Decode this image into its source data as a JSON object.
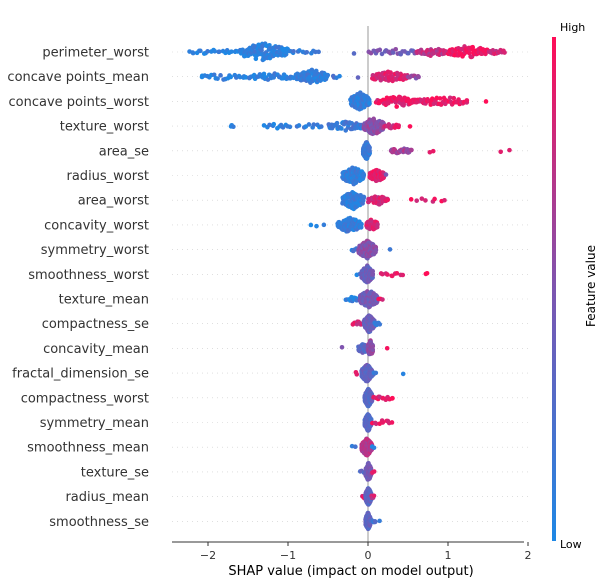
{
  "chart_data": {
    "type": "scatter",
    "subtype": "shap-beeswarm",
    "title": "",
    "xlabel": "SHAP value (impact on model output)",
    "xlim": [
      -2.45,
      1.95
    ],
    "xticks": [
      {
        "value": -2,
        "label": "−2"
      },
      {
        "value": -1,
        "label": "−1"
      },
      {
        "value": 0,
        "label": "0"
      },
      {
        "value": 1,
        "label": "1"
      },
      {
        "value": 2,
        "label": "2"
      }
    ],
    "colorbar": {
      "label": "Feature value",
      "high": "High",
      "low": "Low",
      "low_color": "#1e88e5",
      "high_color": "#ff0d57"
    },
    "features": [
      {
        "name": "perimeter_worst",
        "clusters": [
          {
            "lo": -2.25,
            "hi": -1.6,
            "n": 22,
            "c": 0.05
          },
          {
            "lo": -1.6,
            "hi": -1.0,
            "n": 110,
            "c": 0.07
          },
          {
            "lo": -1.0,
            "hi": -0.6,
            "n": 12,
            "c": 0.1
          },
          {
            "lo": -0.2,
            "hi": -0.15,
            "n": 1,
            "c": 0.3
          },
          {
            "lo": 0.0,
            "hi": 0.6,
            "n": 25,
            "c": 0.45
          },
          {
            "lo": 0.6,
            "hi": 1.0,
            "n": 35,
            "c": 0.75
          },
          {
            "lo": 1.0,
            "hi": 1.5,
            "n": 70,
            "c": 0.95
          },
          {
            "lo": 1.5,
            "hi": 1.72,
            "n": 15,
            "c": 0.8
          }
        ]
      },
      {
        "name": "concave points_mean",
        "clusters": [
          {
            "lo": -2.1,
            "hi": -1.5,
            "n": 22,
            "c": 0.05
          },
          {
            "lo": -1.5,
            "hi": -0.9,
            "n": 35,
            "c": 0.08
          },
          {
            "lo": -0.9,
            "hi": -0.5,
            "n": 80,
            "c": 0.1
          },
          {
            "lo": -0.45,
            "hi": -0.35,
            "n": 4,
            "c": 0.15
          },
          {
            "lo": -0.15,
            "hi": -0.1,
            "n": 1,
            "c": 0.25
          },
          {
            "lo": 0.05,
            "hi": 0.5,
            "n": 60,
            "c": 0.85
          },
          {
            "lo": 0.5,
            "hi": 0.65,
            "n": 8,
            "c": 0.6
          }
        ]
      },
      {
        "name": "concave points_worst",
        "clusters": [
          {
            "lo": -0.22,
            "hi": 0.02,
            "n": 110,
            "c": 0.1
          },
          {
            "lo": 0.1,
            "hi": 0.6,
            "n": 55,
            "c": 0.9
          },
          {
            "lo": 0.6,
            "hi": 1.25,
            "n": 45,
            "c": 0.92
          },
          {
            "lo": 1.45,
            "hi": 1.5,
            "n": 1,
            "c": 0.9
          }
        ]
      },
      {
        "name": "texture_worst",
        "clusters": [
          {
            "lo": -1.72,
            "hi": -1.68,
            "n": 3,
            "c": 0.1
          },
          {
            "lo": -1.3,
            "hi": -0.95,
            "n": 12,
            "c": 0.05
          },
          {
            "lo": -0.9,
            "hi": -0.55,
            "n": 10,
            "c": 0.08
          },
          {
            "lo": -0.5,
            "hi": -0.05,
            "n": 45,
            "c": 0.15
          },
          {
            "lo": -0.05,
            "hi": 0.2,
            "n": 110,
            "c": 0.55
          },
          {
            "lo": 0.2,
            "hi": 0.4,
            "n": 12,
            "c": 0.85
          },
          {
            "lo": 0.5,
            "hi": 0.55,
            "n": 1,
            "c": 0.9
          }
        ]
      },
      {
        "name": "area_se",
        "clusters": [
          {
            "lo": -0.06,
            "hi": 0.02,
            "n": 200,
            "c": 0.15
          },
          {
            "lo": 0.28,
            "hi": 0.55,
            "n": 25,
            "c": 0.65
          },
          {
            "lo": 0.7,
            "hi": 0.85,
            "n": 2,
            "c": 0.85
          },
          {
            "lo": 1.55,
            "hi": 1.82,
            "n": 2,
            "c": 0.95
          }
        ]
      },
      {
        "name": "radius_worst",
        "clusters": [
          {
            "lo": -0.32,
            "hi": -0.05,
            "n": 110,
            "c": 0.1
          },
          {
            "lo": 0.02,
            "hi": 0.2,
            "n": 70,
            "c": 0.92
          },
          {
            "lo": 0.2,
            "hi": 0.25,
            "n": 1,
            "c": 0.5
          }
        ]
      },
      {
        "name": "area_worst",
        "clusters": [
          {
            "lo": -0.32,
            "hi": -0.05,
            "n": 110,
            "c": 0.1
          },
          {
            "lo": 0.0,
            "hi": 0.25,
            "n": 50,
            "c": 0.85
          },
          {
            "lo": 0.5,
            "hi": 1.0,
            "n": 8,
            "c": 0.9
          }
        ]
      },
      {
        "name": "concavity_worst",
        "clusters": [
          {
            "lo": -0.72,
            "hi": -0.55,
            "n": 3,
            "c": 0.08
          },
          {
            "lo": -0.38,
            "hi": -0.08,
            "n": 90,
            "c": 0.1
          },
          {
            "lo": -0.02,
            "hi": 0.12,
            "n": 60,
            "c": 0.85
          }
        ]
      },
      {
        "name": "symmetry_worst",
        "clusters": [
          {
            "lo": -0.22,
            "hi": -0.12,
            "n": 5,
            "c": 0.15
          },
          {
            "lo": -0.12,
            "hi": 0.1,
            "n": 150,
            "c": 0.55
          },
          {
            "lo": 0.25,
            "hi": 0.3,
            "n": 1,
            "c": 0.05
          }
        ]
      },
      {
        "name": "smoothness_worst",
        "clusters": [
          {
            "lo": -0.15,
            "hi": -0.1,
            "n": 2,
            "c": 0.1
          },
          {
            "lo": -0.08,
            "hi": 0.06,
            "n": 180,
            "c": 0.4
          },
          {
            "lo": 0.15,
            "hi": 0.45,
            "n": 10,
            "c": 0.92
          },
          {
            "lo": 0.7,
            "hi": 0.75,
            "n": 2,
            "c": 0.95
          }
        ]
      },
      {
        "name": "texture_mean",
        "clusters": [
          {
            "lo": -0.28,
            "hi": -0.1,
            "n": 12,
            "c": 0.1
          },
          {
            "lo": -0.1,
            "hi": 0.12,
            "n": 160,
            "c": 0.45
          },
          {
            "lo": 0.12,
            "hi": 0.2,
            "n": 3,
            "c": 0.9
          }
        ]
      },
      {
        "name": "compactness_se",
        "clusters": [
          {
            "lo": -0.2,
            "hi": -0.05,
            "n": 12,
            "c": 0.85
          },
          {
            "lo": -0.05,
            "hi": 0.08,
            "n": 170,
            "c": 0.4
          },
          {
            "lo": 0.08,
            "hi": 0.15,
            "n": 8,
            "c": 0.1
          }
        ]
      },
      {
        "name": "concavity_mean",
        "clusters": [
          {
            "lo": -0.35,
            "hi": -0.3,
            "n": 1,
            "c": 0.5
          },
          {
            "lo": -0.12,
            "hi": 0.0,
            "n": 50,
            "c": 0.3
          },
          {
            "lo": 0.0,
            "hi": 0.06,
            "n": 100,
            "c": 0.55
          },
          {
            "lo": 0.22,
            "hi": 0.26,
            "n": 1,
            "c": 0.9
          }
        ]
      },
      {
        "name": "fractal_dimension_se",
        "clusters": [
          {
            "lo": -0.18,
            "hi": -0.12,
            "n": 2,
            "c": 0.9
          },
          {
            "lo": -0.08,
            "hi": 0.05,
            "n": 170,
            "c": 0.35
          },
          {
            "lo": 0.05,
            "hi": 0.1,
            "n": 4,
            "c": 0.2
          },
          {
            "lo": 0.42,
            "hi": 0.46,
            "n": 1,
            "c": 0.05
          }
        ]
      },
      {
        "name": "compactness_worst",
        "clusters": [
          {
            "lo": -0.04,
            "hi": 0.05,
            "n": 180,
            "c": 0.3
          },
          {
            "lo": 0.05,
            "hi": 0.32,
            "n": 14,
            "c": 0.9
          }
        ]
      },
      {
        "name": "symmetry_mean",
        "clusters": [
          {
            "lo": -0.04,
            "hi": 0.04,
            "n": 180,
            "c": 0.3
          },
          {
            "lo": 0.04,
            "hi": 0.32,
            "n": 10,
            "c": 0.92
          }
        ]
      },
      {
        "name": "smoothness_mean",
        "clusters": [
          {
            "lo": -0.22,
            "hi": -0.15,
            "n": 2,
            "c": 0.1
          },
          {
            "lo": -0.08,
            "hi": 0.05,
            "n": 180,
            "c": 0.7
          },
          {
            "lo": 0.05,
            "hi": 0.08,
            "n": 2,
            "c": 0.1
          }
        ]
      },
      {
        "name": "texture_se",
        "clusters": [
          {
            "lo": -0.1,
            "hi": 0.0,
            "n": 6,
            "c": 0.3
          },
          {
            "lo": -0.03,
            "hi": 0.04,
            "n": 180,
            "c": 0.45
          },
          {
            "lo": 0.04,
            "hi": 0.08,
            "n": 3,
            "c": 0.8
          }
        ]
      },
      {
        "name": "radius_mean",
        "clusters": [
          {
            "lo": -0.08,
            "hi": 0.0,
            "n": 8,
            "c": 0.85
          },
          {
            "lo": -0.03,
            "hi": 0.04,
            "n": 180,
            "c": 0.35
          },
          {
            "lo": 0.04,
            "hi": 0.08,
            "n": 4,
            "c": 0.8
          }
        ]
      },
      {
        "name": "smoothness_se",
        "clusters": [
          {
            "lo": -0.03,
            "hi": 0.03,
            "n": 180,
            "c": 0.35
          },
          {
            "lo": 0.03,
            "hi": 0.1,
            "n": 6,
            "c": 0.2
          },
          {
            "lo": 0.13,
            "hi": 0.16,
            "n": 1,
            "c": 0.05
          }
        ]
      }
    ]
  }
}
